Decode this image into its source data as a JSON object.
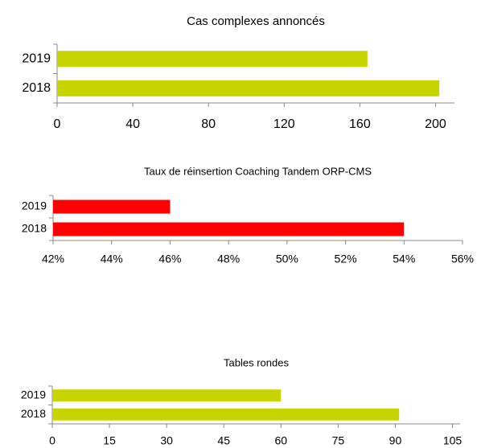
{
  "chart_data": [
    {
      "type": "bar",
      "orientation": "horizontal",
      "title": "Cas complexes annoncés",
      "categories": [
        "2019",
        "2018"
      ],
      "values": [
        164,
        202
      ],
      "color": "#c8d400",
      "xlim": [
        0,
        210
      ],
      "xticks": [
        0,
        40,
        80,
        120,
        160,
        200
      ]
    },
    {
      "type": "bar",
      "orientation": "horizontal",
      "title": "Taux de réinsertion Coaching Tandem ORP-CMS",
      "categories": [
        "2019",
        "2018"
      ],
      "values": [
        46,
        54
      ],
      "color": "#ff0000",
      "xlim": [
        42,
        56
      ],
      "xticks": [
        {
          "value": 42,
          "label": "42%"
        },
        {
          "value": 44,
          "label": "44%"
        },
        {
          "value": 46,
          "label": "46%"
        },
        {
          "value": 48,
          "label": "48%"
        },
        {
          "value": 50,
          "label": "50%"
        },
        {
          "value": 52,
          "label": "52%"
        },
        {
          "value": 54,
          "label": "54%"
        },
        {
          "value": 56,
          "label": "56%"
        }
      ]
    },
    {
      "type": "bar",
      "orientation": "horizontal",
      "title": "Tables rondes",
      "categories": [
        "2019",
        "2018"
      ],
      "values": [
        60,
        91
      ],
      "color": "#c8d400",
      "xlim": [
        0,
        107
      ],
      "xticks": [
        0,
        15,
        30,
        45,
        60,
        75,
        90,
        105
      ]
    }
  ]
}
